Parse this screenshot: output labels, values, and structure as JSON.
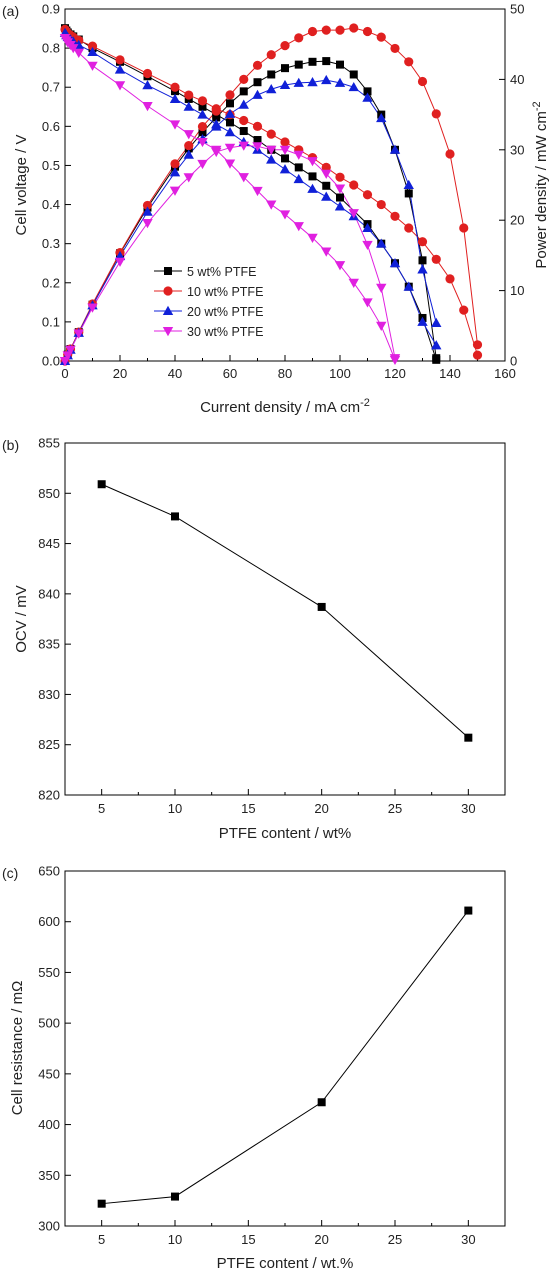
{
  "chart_data": [
    {
      "type": "line",
      "panel_label": "(a)",
      "xlabel": "Current density / mA cm",
      "xlabel_sup": "-2",
      "ylabel": "Cell voltage / V",
      "y2label": "Power density / mW cm",
      "y2label_sup": "-2",
      "xlim": [
        0,
        160
      ],
      "ylim": [
        0.0,
        0.9
      ],
      "y2lim": [
        0,
        50
      ],
      "xticks": [
        "0",
        "20",
        "40",
        "60",
        "80",
        "100",
        "120",
        "140",
        "160"
      ],
      "yticks": [
        "0.0",
        "0.1",
        "0.2",
        "0.3",
        "0.4",
        "0.5",
        "0.6",
        "0.7",
        "0.8",
        "0.9"
      ],
      "y2ticks": [
        "0",
        "10",
        "20",
        "30",
        "40",
        "50"
      ],
      "legend_position": "center-left",
      "series": [
        {
          "name": "5 wt% PTFE",
          "color": "#000000",
          "marker": "square",
          "voltage": {
            "x": [
              0,
              0.5,
              1,
              2,
              3,
              5,
              10,
              20,
              30,
              40,
              45,
              50,
              55,
              60,
              65,
              70,
              75,
              80,
              85,
              90,
              95,
              100,
              110,
              115,
              120,
              125,
              130,
              135
            ],
            "y": [
              0.851,
              0.845,
              0.84,
              0.835,
              0.83,
              0.822,
              0.8,
              0.765,
              0.728,
              0.69,
              0.67,
              0.65,
              0.63,
              0.61,
              0.588,
              0.565,
              0.54,
              0.518,
              0.495,
              0.472,
              0.448,
              0.418,
              0.35,
              0.3,
              0.25,
              0.19,
              0.11,
              0.003
            ]
          },
          "power": {
            "x": [
              0,
              1,
              2,
              5,
              10,
              20,
              30,
              40,
              45,
              50,
              55,
              60,
              65,
              70,
              75,
              80,
              85,
              90,
              95,
              100,
              105,
              110,
              115,
              120,
              125,
              130,
              135
            ],
            "y": [
              0,
              0.9,
              1.7,
              4.1,
              8.0,
              15.3,
              21.8,
              27.6,
              30.2,
              32.5,
              34.6,
              36.6,
              38.3,
              39.6,
              40.7,
              41.6,
              42.1,
              42.5,
              42.6,
              42.1,
              40.7,
              38.3,
              35.0,
              30.0,
              23.8,
              14.3,
              0.4
            ]
          }
        },
        {
          "name": "10 wt% PTFE",
          "color": "#e02020",
          "marker": "circle",
          "voltage": {
            "x": [
              0,
              0.5,
              1,
              2,
              3,
              5,
              10,
              20,
              30,
              40,
              45,
              50,
              55,
              60,
              65,
              70,
              75,
              80,
              85,
              90,
              95,
              100,
              105,
              110,
              115,
              120,
              125,
              130,
              135,
              140,
              145,
              150
            ],
            "y": [
              0.848,
              0.843,
              0.838,
              0.833,
              0.828,
              0.82,
              0.805,
              0.77,
              0.735,
              0.7,
              0.68,
              0.665,
              0.645,
              0.63,
              0.615,
              0.6,
              0.58,
              0.56,
              0.54,
              0.52,
              0.495,
              0.47,
              0.45,
              0.425,
              0.4,
              0.37,
              0.34,
              0.305,
              0.26,
              0.21,
              0.13,
              0.015
            ]
          },
          "power": {
            "x": [
              0,
              1,
              2,
              5,
              10,
              20,
              30,
              40,
              45,
              50,
              55,
              60,
              65,
              70,
              75,
              80,
              85,
              90,
              95,
              100,
              105,
              110,
              115,
              120,
              125,
              130,
              135,
              140,
              145,
              150
            ],
            "y": [
              0,
              0.9,
              1.7,
              4.1,
              8.1,
              15.4,
              22.1,
              28.0,
              30.6,
              33.3,
              35.5,
              37.8,
              40.0,
              42.0,
              43.5,
              44.8,
              45.9,
              46.8,
              47.0,
              47.0,
              47.3,
              46.8,
              46.0,
              44.4,
              42.5,
              39.7,
              35.1,
              29.4,
              18.9,
              2.3
            ]
          }
        },
        {
          "name": "20 wt% PTFE",
          "color": "#1020d8",
          "marker": "triangle-up",
          "voltage": {
            "x": [
              0,
              0.5,
              1,
              2,
              3,
              5,
              10,
              20,
              30,
              40,
              45,
              50,
              55,
              60,
              65,
              70,
              75,
              80,
              85,
              90,
              95,
              100,
              105,
              110,
              115,
              120,
              125,
              130,
              135
            ],
            "y": [
              0.839,
              0.833,
              0.828,
              0.822,
              0.817,
              0.808,
              0.79,
              0.745,
              0.705,
              0.67,
              0.65,
              0.63,
              0.605,
              0.585,
              0.56,
              0.54,
              0.515,
              0.49,
              0.465,
              0.44,
              0.42,
              0.395,
              0.37,
              0.34,
              0.3,
              0.25,
              0.19,
              0.1,
              0.04
            ]
          },
          "power": {
            "x": [
              0,
              1,
              2,
              5,
              10,
              20,
              30,
              40,
              45,
              50,
              55,
              60,
              65,
              70,
              75,
              80,
              85,
              90,
              95,
              100,
              105,
              110,
              115,
              120,
              125,
              130,
              135
            ],
            "y": [
              0,
              0.8,
              1.6,
              4.0,
              7.9,
              14.9,
              21.2,
              26.8,
              29.3,
              31.5,
              33.3,
              35.1,
              36.4,
              37.8,
              38.6,
              39.2,
              39.5,
              39.6,
              39.9,
              39.5,
              38.9,
              37.4,
              34.5,
              30.0,
              25.0,
              13.0,
              5.4
            ]
          }
        },
        {
          "name": "30 wt% PTFE",
          "color": "#e020e0",
          "marker": "triangle-down",
          "voltage": {
            "x": [
              0,
              0.5,
              1,
              2,
              3,
              5,
              10,
              20,
              30,
              40,
              45,
              50,
              55,
              60,
              65,
              70,
              75,
              80,
              85,
              90,
              95,
              100,
              105,
              110,
              115,
              120
            ],
            "y": [
              0.826,
              0.82,
              0.815,
              0.808,
              0.8,
              0.788,
              0.755,
              0.705,
              0.652,
              0.605,
              0.58,
              0.56,
              0.54,
              0.505,
              0.47,
              0.435,
              0.4,
              0.375,
              0.345,
              0.315,
              0.28,
              0.245,
              0.2,
              0.15,
              0.09,
              0.003
            ]
          },
          "power": {
            "x": [
              0,
              1,
              2,
              5,
              10,
              20,
              30,
              40,
              45,
              50,
              55,
              60,
              65,
              70,
              75,
              80,
              85,
              90,
              95,
              100,
              105,
              110,
              115,
              120
            ],
            "y": [
              0,
              0.8,
              1.6,
              3.9,
              7.6,
              14.1,
              19.6,
              24.2,
              26.1,
              28.0,
              29.7,
              30.3,
              30.6,
              30.5,
              30.0,
              30.0,
              29.3,
              28.4,
              26.6,
              24.5,
              21.0,
              16.5,
              10.4,
              0.4
            ]
          }
        }
      ]
    },
    {
      "type": "line",
      "panel_label": "(b)",
      "xlabel": "PTFE content / wt%",
      "ylabel": "OCV / mV",
      "xlim": [
        2.5,
        32.5
      ],
      "ylim": [
        820,
        855
      ],
      "xticks": [
        "5",
        "10",
        "15",
        "20",
        "25",
        "30"
      ],
      "yticks": [
        "820",
        "825",
        "830",
        "835",
        "840",
        "845",
        "850",
        "855"
      ],
      "marker": "square",
      "color": "#000000",
      "x": [
        5,
        10,
        20,
        30
      ],
      "y": [
        850.9,
        847.7,
        838.7,
        825.7
      ]
    },
    {
      "type": "line",
      "panel_label": "(c)",
      "xlabel": "PTFE content / wt.%",
      "ylabel": "Cell resistance / mΩ",
      "xlim": [
        2.5,
        32.5
      ],
      "ylim": [
        300,
        650
      ],
      "xticks": [
        "5",
        "10",
        "15",
        "20",
        "25",
        "30"
      ],
      "yticks": [
        "300",
        "350",
        "400",
        "450",
        "500",
        "550",
        "600",
        "650"
      ],
      "marker": "square",
      "color": "#000000",
      "x": [
        5,
        10,
        20,
        30
      ],
      "y": [
        322,
        329,
        422,
        611
      ]
    }
  ]
}
